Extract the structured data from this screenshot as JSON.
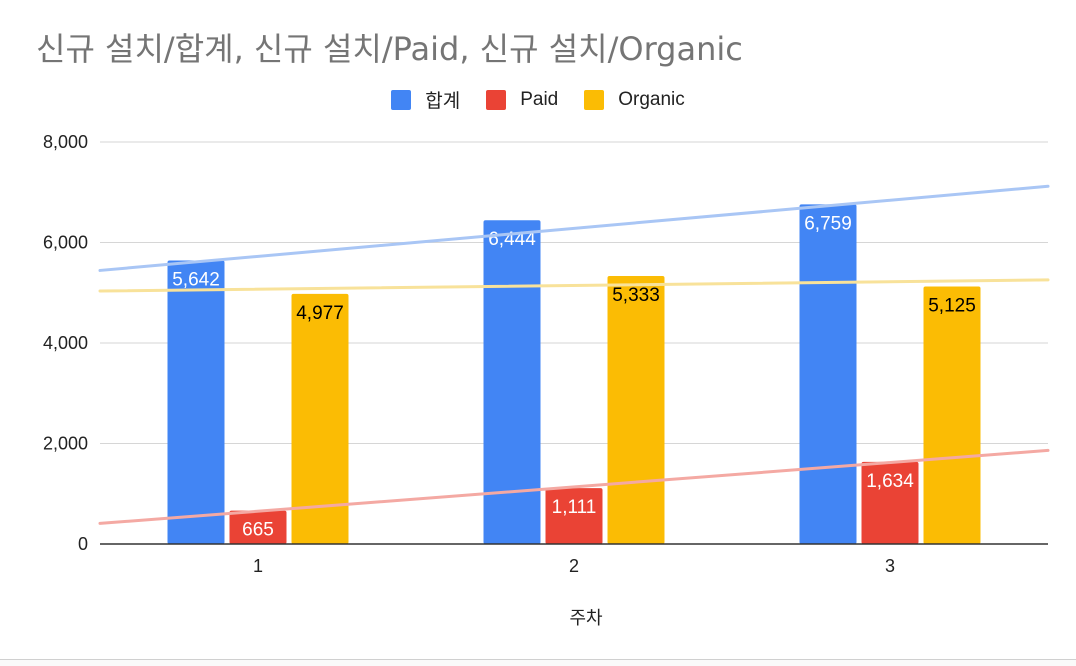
{
  "chart_data": {
    "type": "bar",
    "title": "신규 설치/합계, 신규 설치/Paid, 신규 설치/Organic",
    "xlabel": "주차",
    "ylabel": "",
    "categories": [
      "1",
      "2",
      "3"
    ],
    "series": [
      {
        "name": "합계",
        "color": "#4285F4",
        "label_color": "#ffffff",
        "values": [
          5642,
          6444,
          6759
        ],
        "labels": [
          "5,642",
          "6,444",
          "6,759"
        ]
      },
      {
        "name": "Paid",
        "color": "#EA4335",
        "label_color": "#ffffff",
        "values": [
          665,
          1111,
          1634
        ],
        "labels": [
          "665",
          "1,111",
          "1,634"
        ]
      },
      {
        "name": "Organic",
        "color": "#FBBC04",
        "label_color": "#000000",
        "values": [
          4977,
          5333,
          5125
        ],
        "labels": [
          "4,977",
          "5,333",
          "5,125"
        ]
      }
    ],
    "trendlines": [
      {
        "series": "합계",
        "color": "#A9C6F5"
      },
      {
        "series": "Paid",
        "color": "#F4A9A3"
      },
      {
        "series": "Organic",
        "color": "#F8E29A"
      }
    ],
    "ylim": [
      0,
      8000
    ],
    "yticks": [
      0,
      2000,
      4000,
      6000,
      8000
    ],
    "ytick_labels": [
      "0",
      "2,000",
      "4,000",
      "6,000",
      "8,000"
    ],
    "grid": true,
    "legend_position": "top"
  }
}
